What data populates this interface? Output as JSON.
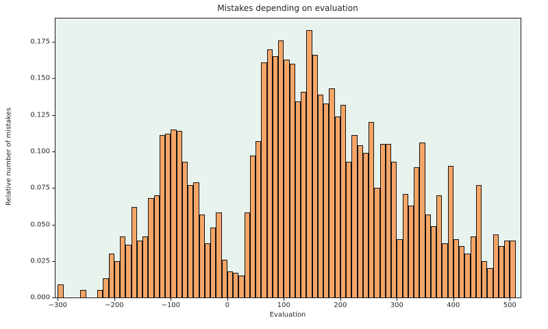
{
  "title": "Mistakes depending on evaluation",
  "chart_data": {
    "type": "bar",
    "title": "Mistakes depending on evaluation",
    "xlabel": "Evaluation",
    "ylabel": "Relative number of mistakes",
    "bins_start": -300,
    "bin_width": 10,
    "values": [
      0.009,
      0,
      0,
      0,
      0.005,
      0,
      0,
      0.005,
      0.013,
      0.03,
      0.025,
      0.042,
      0.036,
      0.062,
      0.039,
      0.042,
      0.068,
      0.07,
      0.111,
      0.112,
      0.115,
      0.114,
      0.093,
      0.077,
      0.079,
      0.057,
      0.037,
      0.048,
      0.058,
      0.026,
      0.018,
      0.017,
      0.015,
      0.058,
      0.097,
      0.107,
      0.161,
      0.17,
      0.165,
      0.176,
      0.163,
      0.16,
      0.134,
      0.141,
      0.183,
      0.166,
      0.139,
      0.133,
      0.143,
      0.124,
      0.132,
      0.093,
      0.111,
      0.104,
      0.099,
      0.12,
      0.075,
      0.105,
      0.105,
      0.093,
      0.04,
      0.071,
      0.063,
      0.089,
      0.106,
      0.057,
      0.049,
      0.07,
      0.037,
      0.09,
      0.04,
      0.035,
      0.03,
      0.042,
      0.077,
      0.025,
      0.02,
      0.043,
      0.035,
      0.039,
      0.039
    ],
    "xticks": [
      -300,
      -200,
      -100,
      0,
      100,
      200,
      300,
      400,
      500
    ],
    "xtick_labels": [
      "−300",
      "−200",
      "−100",
      "0",
      "100",
      "200",
      "300",
      "400",
      "500"
    ],
    "yticks": [
      0,
      0.025,
      0.05,
      0.075,
      0.1,
      0.125,
      0.15,
      0.175
    ],
    "ytick_labels": [
      "0.000",
      "0.025",
      "0.050",
      "0.075",
      "0.100",
      "0.125",
      "0.150",
      "0.175"
    ],
    "xlim": [
      -304,
      519
    ],
    "ylim": [
      0,
      0.191
    ],
    "grid": false,
    "legend": null,
    "bar_color": "#f5a567",
    "bar_edge_color": "#111111",
    "plot_bg_color": "#e9f3ee"
  }
}
